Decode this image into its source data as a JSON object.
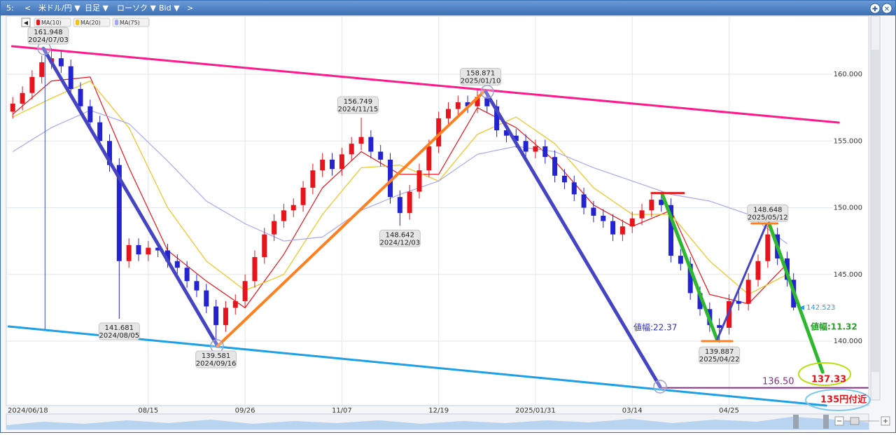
{
  "toolbar": [
    "5:",
    "<",
    "米ドル/円 ▼",
    "日足 ▼",
    "ローソク ▼",
    "Bid ▼",
    ">"
  ],
  "chart_data": {
    "type": "candlestick",
    "up_color": "#e8141b",
    "down_color": "#2323d2",
    "grid": true,
    "xlim": [
      -2,
      254
    ],
    "xticks": [
      {
        "value": 0,
        "label": "2024/06/18"
      },
      {
        "value": 42,
        "label": "08/15"
      },
      {
        "value": 72,
        "label": "09/26"
      },
      {
        "value": 102,
        "label": "11/07"
      },
      {
        "value": 132,
        "label": "12/19"
      },
      {
        "value": 162,
        "label": "2025/01/31"
      },
      {
        "value": 192,
        "label": "03/14"
      },
      {
        "value": 222,
        "label": "04/25"
      }
    ],
    "ylim": [
      135.17,
      164.36
    ],
    "yticks": [
      {
        "value": 140,
        "label": "140.000"
      },
      {
        "value": 145,
        "label": "145.000"
      },
      {
        "value": 150,
        "label": "150.000"
      },
      {
        "value": 155,
        "label": "155.000"
      },
      {
        "value": 160,
        "label": "160.000"
      }
    ],
    "candles": {
      "x": [
        0,
        3,
        6,
        9,
        12,
        15,
        18,
        21,
        24,
        27,
        30,
        33,
        36,
        39,
        42,
        45,
        48,
        51,
        54,
        57,
        60,
        63,
        66,
        69,
        72,
        75,
        78,
        81,
        84,
        87,
        90,
        93,
        96,
        99,
        102,
        105,
        108,
        111,
        114,
        117,
        120,
        123,
        126,
        129,
        132,
        135,
        138,
        141,
        144,
        147,
        150,
        153,
        156,
        159,
        162,
        165,
        168,
        171,
        174,
        177,
        180,
        183,
        186,
        189,
        192,
        195,
        198,
        201,
        204,
        207,
        210,
        213,
        216,
        219,
        222,
        225,
        228,
        231,
        234,
        237,
        240,
        242
      ],
      "open": [
        157.2,
        157.8,
        158.6,
        159.8,
        160.9,
        161.2,
        160.6,
        158.9,
        157.6,
        156.4,
        155.0,
        153.2,
        146.0,
        147.2,
        146.5,
        147.0,
        146.8,
        146.0,
        145.5,
        144.5,
        143.8,
        142.6,
        141.2,
        142.5,
        143.0,
        144.5,
        146.3,
        148.0,
        149.0,
        149.8,
        150.2,
        151.5,
        152.8,
        153.6,
        152.9,
        154.0,
        154.8,
        155.3,
        154.2,
        153.6,
        150.8,
        149.6,
        151.2,
        152.8,
        154.6,
        156.7,
        157.4,
        157.9,
        157.6,
        158.3,
        157.6,
        155.8,
        155.4,
        155.0,
        154.2,
        154.6,
        153.8,
        152.4,
        151.9,
        151.0,
        150.0,
        149.4,
        149.0,
        148.0,
        148.6,
        149.2,
        149.8,
        150.6,
        150.2,
        146.4,
        145.8,
        143.6,
        142.4,
        141.2,
        141.0,
        143.0,
        142.8,
        144.6,
        146.0,
        148.0,
        146.2,
        144.6
      ],
      "high": [
        158.3,
        159.1,
        160.3,
        161.4,
        161.948,
        161.7,
        161.1,
        159.4,
        158.1,
        156.9,
        155.5,
        153.7,
        147.7,
        147.7,
        147.5,
        147.5,
        147.3,
        146.5,
        146.0,
        145.0,
        144.3,
        143.1,
        143.0,
        143.5,
        145.0,
        146.8,
        148.5,
        149.5,
        150.3,
        150.7,
        152.0,
        153.3,
        154.1,
        154.1,
        154.5,
        155.3,
        156.749,
        155.8,
        154.7,
        154.1,
        151.3,
        151.7,
        153.3,
        155.1,
        157.2,
        157.9,
        158.4,
        158.4,
        158.871,
        158.8,
        158.1,
        156.3,
        155.9,
        155.5,
        155.1,
        155.1,
        154.3,
        152.9,
        152.4,
        151.5,
        150.5,
        149.9,
        149.5,
        149.1,
        149.7,
        150.3,
        151.1,
        151.1,
        150.7,
        146.9,
        146.3,
        144.1,
        142.9,
        141.7,
        143.5,
        143.8,
        145.1,
        146.5,
        148.648,
        148.5,
        146.7,
        145.1
      ],
      "low": [
        156.7,
        157.3,
        158.1,
        159.3,
        160.4,
        160.1,
        158.4,
        157.1,
        155.9,
        154.5,
        152.7,
        141.681,
        145.5,
        146.0,
        146.0,
        146.3,
        145.5,
        145.0,
        144.0,
        143.3,
        142.1,
        139.581,
        140.7,
        142.0,
        142.5,
        144.0,
        145.8,
        147.5,
        148.5,
        149.3,
        149.7,
        151.0,
        152.3,
        152.4,
        152.4,
        153.5,
        154.3,
        153.7,
        153.1,
        150.3,
        148.642,
        149.1,
        150.7,
        152.3,
        154.1,
        156.2,
        156.9,
        157.1,
        157.1,
        157.1,
        155.3,
        154.9,
        154.5,
        153.7,
        153.7,
        153.3,
        151.9,
        151.4,
        150.5,
        149.5,
        148.9,
        148.5,
        147.5,
        147.5,
        148.1,
        148.7,
        149.3,
        149.7,
        145.9,
        145.3,
        143.1,
        141.9,
        140.7,
        139.887,
        140.5,
        142.3,
        142.3,
        144.1,
        145.5,
        145.7,
        144.1,
        142.3
      ],
      "close": [
        157.8,
        158.6,
        159.8,
        160.9,
        161.2,
        160.6,
        158.9,
        157.6,
        156.4,
        155.0,
        153.2,
        146.0,
        147.2,
        146.5,
        147.0,
        146.8,
        146.0,
        145.5,
        144.5,
        143.8,
        142.6,
        141.2,
        142.5,
        143.0,
        144.5,
        146.3,
        148.0,
        149.0,
        149.8,
        150.2,
        151.5,
        152.8,
        153.6,
        152.9,
        154.0,
        154.8,
        155.3,
        154.2,
        153.6,
        150.8,
        149.6,
        151.2,
        152.8,
        154.6,
        156.7,
        157.4,
        157.9,
        157.6,
        158.3,
        157.6,
        155.8,
        155.4,
        155.0,
        154.2,
        154.6,
        153.8,
        152.4,
        151.9,
        151.0,
        150.0,
        149.4,
        149.0,
        148.0,
        148.6,
        149.2,
        149.8,
        150.6,
        150.2,
        146.4,
        145.8,
        143.6,
        142.4,
        141.2,
        141.0,
        143.0,
        142.8,
        144.6,
        146.0,
        148.0,
        146.2,
        144.6,
        142.523
      ]
    },
    "moving_averages": [
      {
        "name": "MA(10)",
        "color": "#e8141b",
        "x": [
          0,
          12,
          24,
          36,
          48,
          60,
          72,
          84,
          96,
          108,
          120,
          132,
          144,
          156,
          168,
          180,
          192,
          204,
          216,
          228,
          240
        ],
        "values": [
          157.0,
          159.5,
          159.8,
          153.0,
          146.8,
          144.5,
          142.5,
          146.5,
          151.5,
          154.2,
          152.5,
          152.5,
          157.5,
          156.0,
          153.5,
          150.2,
          148.6,
          149.8,
          143.5,
          142.8,
          145.8
        ]
      },
      {
        "name": "MA(20)",
        "color": "#f2c21b",
        "x": [
          0,
          12,
          24,
          36,
          48,
          60,
          72,
          84,
          96,
          108,
          120,
          132,
          144,
          156,
          168,
          180,
          192,
          204,
          216,
          228,
          240
        ],
        "values": [
          156.8,
          158.2,
          159.5,
          156.0,
          150.0,
          146.0,
          143.8,
          145.0,
          149.5,
          153.0,
          153.2,
          152.0,
          155.5,
          156.8,
          154.8,
          151.5,
          149.5,
          149.5,
          146.0,
          143.5,
          145.0
        ]
      },
      {
        "name": "MA(75)",
        "color": "#a8a8f0",
        "x": [
          0,
          12,
          24,
          36,
          48,
          60,
          72,
          84,
          96,
          108,
          120,
          132,
          144,
          156,
          168,
          180,
          192,
          204,
          216,
          228,
          240
        ],
        "values": [
          154.2,
          156.0,
          157.3,
          156.3,
          153.5,
          150.5,
          148.8,
          147.5,
          147.8,
          149.8,
          151.0,
          152.0,
          154.0,
          154.6,
          154.2,
          153.0,
          152.0,
          151.0,
          150.5,
          149.5,
          147.3
        ]
      }
    ],
    "annotations": [
      {
        "x": 11,
        "value": 161.948,
        "date": "2024/07/03"
      },
      {
        "x": 33,
        "value": 141.681,
        "date": "2024/08/05"
      },
      {
        "x": 63,
        "value": 139.581,
        "date": "2024/09/16"
      },
      {
        "x": 107,
        "value": 156.749,
        "date": "2024/11/15"
      },
      {
        "x": 120,
        "value": 148.642,
        "date": "2024/12/03"
      },
      {
        "x": 145,
        "value": 158.871,
        "date": "2025/01/10"
      },
      {
        "x": 219,
        "value": 139.887,
        "date": "2025/04/22"
      },
      {
        "x": 234,
        "value": 148.648,
        "date": "2025/05/12"
      }
    ],
    "drawings": [
      {
        "color": "#ff1a8c",
        "width": 3,
        "x": [
          -0.2,
          256
        ],
        "values": [
          162.1,
          156.38
        ]
      },
      {
        "color": "#1ea0e6",
        "width": 3,
        "x": [
          -1.3,
          252.1
        ],
        "values": [
          141.1,
          135.17
        ]
      },
      {
        "color": "#3050c0",
        "width": 1,
        "x": [
          10,
          10
        ],
        "values": [
          161.94,
          140.9
        ]
      },
      {
        "color": "#4444c4",
        "width": 5,
        "x": [
          9.5,
          63.5
        ],
        "values": [
          161.94,
          139.63
        ]
      },
      {
        "color": "#ff8020",
        "width": 4,
        "x": [
          63.5,
          146
        ],
        "values": [
          139.63,
          158.69
        ]
      },
      {
        "color": "#4444c4",
        "width": 5,
        "x": [
          146.6,
          200.6
        ],
        "values": [
          158.69,
          136.59
        ]
      },
      {
        "color": "#2eb82e",
        "width": 5,
        "x": [
          201.2,
          218.3
        ],
        "values": [
          151.08,
          140.1
        ]
      },
      {
        "color": "#4444c4",
        "width": 3,
        "x": [
          218.3,
          233.7
        ],
        "values": [
          140.1,
          148.82
        ]
      },
      {
        "color": "#2eb82e",
        "width": 5,
        "x": [
          234.4,
          251
        ],
        "values": [
          148.82,
          137.69
        ]
      },
      {
        "color": "#e02020",
        "width": 3,
        "x": [
          198,
          208
        ],
        "values": [
          151.1,
          151.1
        ]
      },
      {
        "color": "#ff8020",
        "width": 3,
        "x": [
          213.6,
          223
        ],
        "values": [
          140.0,
          140.0
        ]
      },
      {
        "color": "#ff8020",
        "width": 3,
        "x": [
          229,
          237
        ],
        "values": [
          148.82,
          148.82
        ]
      },
      {
        "color": "#8b2c8b",
        "width": 2,
        "x": [
          201,
          265
        ],
        "values": [
          136.5,
          136.5
        ]
      }
    ],
    "notes": [
      {
        "text": "値幅:22.37",
        "color": "#3030b0"
      },
      {
        "text": "値幅:11.32",
        "color": "#2a9a2a"
      },
      {
        "text": "136.50",
        "color": "#8b2c8b"
      },
      {
        "text": "137.33",
        "color": "#e0141b"
      },
      {
        "text": "135円付近",
        "color": "#e0141b"
      }
    ]
  }
}
